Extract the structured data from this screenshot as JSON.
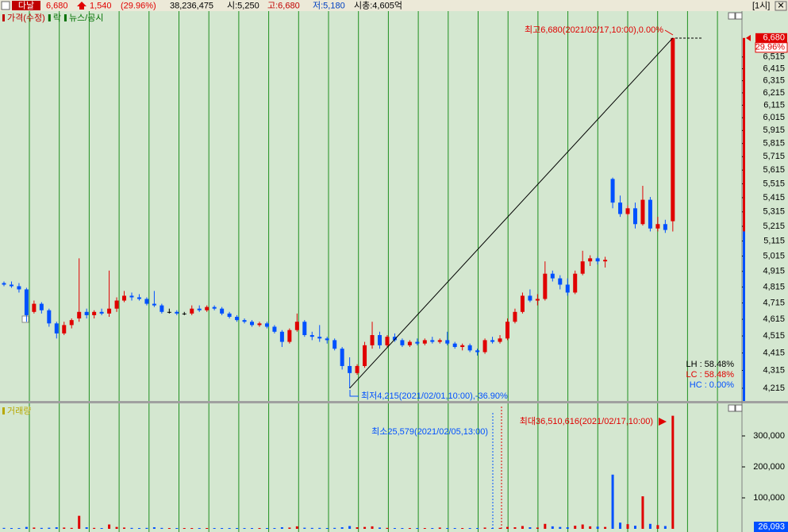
{
  "header": {
    "name": "다날",
    "price": "6,680",
    "change": "1,540",
    "change_pct": "(29.96%)",
    "volume": "38,236,475",
    "open": "시:5,250",
    "high": "고:6,680",
    "low": "저:5,180",
    "market_cap": "시총:4,605억",
    "interval": "[1시]"
  },
  "chart_data": [
    {
      "type": "candlestick",
      "legend": [
        {
          "name": "가격(수정)",
          "color": "#c00000"
        },
        {
          "name": "락",
          "color": "#007000"
        },
        {
          "name": "뉴스/공시",
          "color": "#007000"
        }
      ],
      "up_color": "#e00000",
      "down_color": "#0050ff",
      "doji_color": "#000000",
      "log_scale": true,
      "ylim": [
        4145,
        6920
      ],
      "yticks": [
        {
          "value": 4215,
          "label": "4,215"
        },
        {
          "value": 4315,
          "label": "4,315"
        },
        {
          "value": 4415,
          "label": "4,415"
        },
        {
          "value": 4515,
          "label": "4,515"
        },
        {
          "value": 4615,
          "label": "4,615"
        },
        {
          "value": 4715,
          "label": "4,715"
        },
        {
          "value": 4815,
          "label": "4,815"
        },
        {
          "value": 4915,
          "label": "4,915"
        },
        {
          "value": 5015,
          "label": "5,015"
        },
        {
          "value": 5115,
          "label": "5,115"
        },
        {
          "value": 5215,
          "label": "5,215"
        },
        {
          "value": 5315,
          "label": "5,315"
        },
        {
          "value": 5415,
          "label": "5,415"
        },
        {
          "value": 5515,
          "label": "5,515"
        },
        {
          "value": 5615,
          "label": "5,615"
        },
        {
          "value": 5715,
          "label": "5,715"
        },
        {
          "value": 5815,
          "label": "5,815"
        },
        {
          "value": 5915,
          "label": "5,915"
        },
        {
          "value": 6015,
          "label": "6,015"
        },
        {
          "value": 6115,
          "label": "6,115"
        },
        {
          "value": 6215,
          "label": "6,215"
        },
        {
          "value": 6315,
          "label": "6,315"
        },
        {
          "value": 6415,
          "label": "6,415"
        },
        {
          "value": 6515,
          "label": "6,515"
        }
      ],
      "current": {
        "value": 6680,
        "label": "6,680"
      },
      "change_pct": "29.96%",
      "high_label": "최고6,680(2021/02/17,10:00),0.00%",
      "low_label": "최저4,215(2021/02/01,10:00),-36.90%",
      "stats": [
        {
          "text": "LH : 58.48%",
          "color": "#000000"
        },
        {
          "text": "LC : 58.48%",
          "color": "#e00000"
        },
        {
          "text": "HC :  0.00%",
          "color": "#0050ff"
        }
      ],
      "ohlc": [
        [
          4840,
          4850,
          4820,
          4830
        ],
        [
          4830,
          4850,
          4810,
          4820
        ],
        [
          4820,
          4840,
          4780,
          4800
        ],
        [
          4800,
          4810,
          4600,
          4640
        ],
        [
          4660,
          4730,
          4650,
          4710
        ],
        [
          4710,
          4720,
          4650,
          4670
        ],
        [
          4670,
          4680,
          4570,
          4590
        ],
        [
          4590,
          4600,
          4500,
          4530
        ],
        [
          4530,
          4600,
          4520,
          4580
        ],
        [
          4580,
          4620,
          4560,
          4610
        ],
        [
          4620,
          5000,
          4600,
          4660
        ],
        [
          4660,
          4680,
          4620,
          4640
        ],
        [
          4640,
          4670,
          4620,
          4660
        ],
        [
          4660,
          4680,
          4640,
          4650
        ],
        [
          4650,
          4920,
          4630,
          4680
        ],
        [
          4680,
          4750,
          4660,
          4730
        ],
        [
          4730,
          4790,
          4720,
          4760
        ],
        [
          4760,
          4780,
          4730,
          4750
        ],
        [
          4750,
          4770,
          4730,
          4740
        ],
        [
          4740,
          4750,
          4700,
          4710
        ],
        [
          4710,
          4790,
          4690,
          4700
        ],
        [
          4700,
          4710,
          4650,
          4660
        ],
        [
          4660,
          4680,
          4650,
          4660
        ],
        [
          4660,
          4670,
          4640,
          4650
        ],
        [
          4650,
          4660,
          4640,
          4650
        ],
        [
          4650,
          4700,
          4640,
          4680
        ],
        [
          4680,
          4700,
          4660,
          4670
        ],
        [
          4670,
          4700,
          4660,
          4690
        ],
        [
          4690,
          4700,
          4670,
          4680
        ],
        [
          4680,
          4690,
          4640,
          4650
        ],
        [
          4650,
          4660,
          4620,
          4630
        ],
        [
          4630,
          4640,
          4600,
          4610
        ],
        [
          4610,
          4620,
          4590,
          4600
        ],
        [
          4600,
          4610,
          4570,
          4580
        ],
        [
          4580,
          4600,
          4570,
          4590
        ],
        [
          4590,
          4600,
          4560,
          4570
        ],
        [
          4570,
          4580,
          4530,
          4540
        ],
        [
          4540,
          4550,
          4450,
          4480
        ],
        [
          4480,
          4560,
          4470,
          4550
        ],
        [
          4550,
          4650,
          4540,
          4600
        ],
        [
          4600,
          4610,
          4510,
          4520
        ],
        [
          4520,
          4540,
          4490,
          4510
        ],
        [
          4510,
          4580,
          4480,
          4500
        ],
        [
          4500,
          4510,
          4470,
          4490
        ],
        [
          4490,
          4500,
          4430,
          4440
        ],
        [
          4440,
          4450,
          4320,
          4340
        ],
        [
          4340,
          4390,
          4215,
          4300
        ],
        [
          4300,
          4350,
          4290,
          4340
        ],
        [
          4340,
          4480,
          4330,
          4460
        ],
        [
          4460,
          4600,
          4440,
          4520
        ],
        [
          4520,
          4540,
          4440,
          4460
        ],
        [
          4460,
          4520,
          4450,
          4510
        ],
        [
          4510,
          4530,
          4480,
          4490
        ],
        [
          4490,
          4500,
          4450,
          4460
        ],
        [
          4460,
          4490,
          4450,
          4480
        ],
        [
          4480,
          4500,
          4460,
          4470
        ],
        [
          4470,
          4500,
          4460,
          4490
        ],
        [
          4490,
          4510,
          4470,
          4480
        ],
        [
          4480,
          4500,
          4470,
          4490
        ],
        [
          4490,
          4540,
          4460,
          4470
        ],
        [
          4470,
          4480,
          4440,
          4450
        ],
        [
          4450,
          4470,
          4430,
          4460
        ],
        [
          4460,
          4470,
          4420,
          4430
        ],
        [
          4430,
          4440,
          4400,
          4420
        ],
        [
          4420,
          4500,
          4410,
          4490
        ],
        [
          4490,
          4510,
          4470,
          4480
        ],
        [
          4480,
          4520,
          4470,
          4500
        ],
        [
          4500,
          4620,
          4490,
          4600
        ],
        [
          4600,
          4680,
          4590,
          4660
        ],
        [
          4660,
          4780,
          4650,
          4760
        ],
        [
          4760,
          4800,
          4720,
          4730
        ],
        [
          4730,
          4770,
          4700,
          4740
        ],
        [
          4740,
          4980,
          4730,
          4900
        ],
        [
          4900,
          4920,
          4850,
          4870
        ],
        [
          4870,
          4890,
          4800,
          4830
        ],
        [
          4830,
          4870,
          4760,
          4780
        ],
        [
          4780,
          4920,
          4770,
          4900
        ],
        [
          4900,
          5050,
          4890,
          4980
        ],
        [
          4980,
          5020,
          4950,
          5000
        ],
        [
          5000,
          5010,
          4960,
          4980
        ],
        [
          4980,
          5010,
          4940,
          4990
        ],
        [
          5550,
          5560,
          5340,
          5380
        ],
        [
          5380,
          5430,
          5280,
          5300
        ],
        [
          5300,
          5360,
          5290,
          5340
        ],
        [
          5340,
          5380,
          5200,
          5230
        ],
        [
          5230,
          5500,
          5220,
          5400
        ],
        [
          5400,
          5420,
          5180,
          5200
        ],
        [
          5200,
          5280,
          5180,
          5230
        ],
        [
          5230,
          5260,
          5170,
          5190
        ],
        [
          5250,
          6680,
          5180,
          6680
        ]
      ]
    },
    {
      "type": "bar",
      "title": "거래량",
      "title_color": "#b8a800",
      "ylim": [
        0,
        400000
      ],
      "yticks": [
        {
          "value": 100000,
          "label": "100,000"
        },
        {
          "value": 200000,
          "label": "200,000"
        },
        {
          "value": 300000,
          "label": "300,000"
        }
      ],
      "min_label": "최소25,579(2021/02/05,13:00)",
      "max_label": "최대36,510,616(2021/02/17,10:00)",
      "current_label": "26,093",
      "values": [
        3000,
        2500,
        2000,
        6000,
        4000,
        3000,
        3500,
        5000,
        4000,
        3000,
        42000,
        5000,
        3000,
        2500,
        14000,
        6000,
        4000,
        3000,
        2500,
        3000,
        5000,
        3000,
        2000,
        1500,
        1500,
        2500,
        2000,
        2000,
        1500,
        2000,
        2000,
        2000,
        1500,
        2000,
        1500,
        2000,
        2500,
        5000,
        4000,
        8000,
        3500,
        3000,
        3000,
        2500,
        3000,
        5000,
        9000,
        5000,
        6000,
        8000,
        4000,
        3000,
        2500,
        2000,
        2500,
        2000,
        2000,
        2000,
        4000,
        2500,
        2000,
        2000,
        2500,
        2000,
        4000,
        256,
        3000,
        6000,
        5000,
        9000,
        5000,
        4000,
        16000,
        8000,
        6000,
        5000,
        10000,
        14000,
        8000,
        7000,
        6000,
        175000,
        20000,
        15000,
        10000,
        105000,
        16000,
        12000,
        9000,
        365106
      ]
    }
  ]
}
